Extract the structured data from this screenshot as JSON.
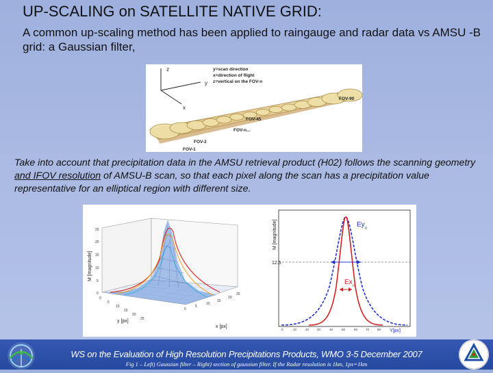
{
  "slide": {
    "title": "UP-SCALING on SATELLITE NATIVE GRID:",
    "subtitle": "A common up-scaling method has been applied to raingauge and radar data vs AMSU -B grid: a Gaussian filter,",
    "paragraph": {
      "part1": "Take into account that precipitation data in the AMSU retrieval product (H02) follows the scanning geometry ",
      "link": "and IFOV resolution",
      "part2": " of AMSU-B scan, so that each pixel along the scan has a precipitation value representative for an elliptical region with different size."
    }
  },
  "fov_figure": {
    "axis_z": "z",
    "axis_y": "y",
    "axis_x": "x",
    "legend": [
      "y=scan direction",
      "x=direction of flight",
      "z=vertical on the FOV-n"
    ],
    "labels": [
      "FOV-90",
      "FOV-45",
      "FOV-n...",
      "FOV-2",
      "FOV-1"
    ]
  },
  "surface_plot": {
    "zlabel": "M [magnitude]",
    "ylabel": "y [px]",
    "xlabel": "x [px]",
    "zticks": [
      "25",
      "20",
      "15",
      "10",
      "5",
      "0"
    ],
    "yticks": [
      "0",
      "5",
      "10",
      "15",
      "20",
      "25"
    ],
    "xticks": [
      "0",
      "5",
      "10",
      "15",
      "20",
      "25"
    ]
  },
  "section_plot": {
    "ylabel": "M [magnitude]",
    "xlabel": "Y[px]",
    "level_label": "12.5",
    "label_ey": "Ey",
    "label_ey_sub": "n",
    "label_ex": "Ex",
    "label_ex_sub": "n",
    "xticks": [
      "0",
      "10",
      "20",
      "30",
      "40",
      "50",
      "60",
      "70",
      "80",
      "90",
      "100"
    ],
    "colors": {
      "blue": "#2233cc",
      "red": "#d42020"
    }
  },
  "footer": {
    "text": "WS on the  Evaluation of High Resolution Precipitations Products, WMO 3-5 December 2007",
    "caption": "Fig 1 – Left) Gaussian filter – Right) section of gaussian filter.  If the Radar resolution is 1km, 1px=1km"
  },
  "logos": {
    "left": "h-saf-logo",
    "right": "protezione-civile-logo"
  }
}
